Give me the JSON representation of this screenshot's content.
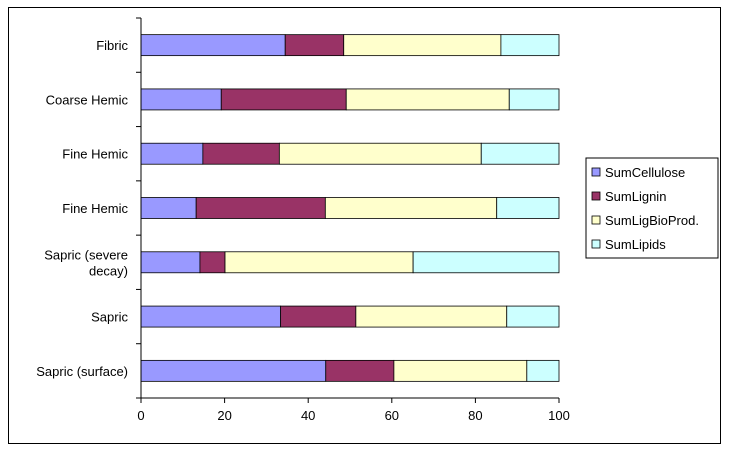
{
  "chart_data": {
    "type": "bar",
    "orientation": "horizontal",
    "stacked": "percent",
    "categories": [
      "Fibric",
      "Coarse Hemic",
      "Fine Hemic",
      "Fine Hemic",
      [
        "Sapric (severe",
        "decay)"
      ],
      "Sapric",
      "Sapric (surface)"
    ],
    "series": [
      {
        "name": "SumCellulose",
        "color": "#9999ff",
        "values": [
          34.5,
          19.2,
          14.8,
          13.2,
          14.1,
          33.4,
          44.2
        ]
      },
      {
        "name": "SumLignin",
        "color": "#993366",
        "values": [
          14.0,
          29.9,
          18.3,
          30.9,
          6.0,
          18.0,
          16.3
        ]
      },
      {
        "name": "SumLigBioProd.",
        "color": "#ffffcc",
        "values": [
          37.6,
          39.0,
          48.3,
          41.0,
          45.0,
          36.1,
          31.8
        ]
      },
      {
        "name": "SumLipids",
        "color": "#ccffff",
        "values": [
          13.9,
          11.9,
          18.6,
          14.9,
          34.9,
          12.5,
          7.7
        ]
      }
    ],
    "xlim": [
      0,
      100
    ],
    "xticks": [
      "0",
      "20",
      "40",
      "60",
      "80",
      "100"
    ],
    "grid": false,
    "legend": "right"
  }
}
